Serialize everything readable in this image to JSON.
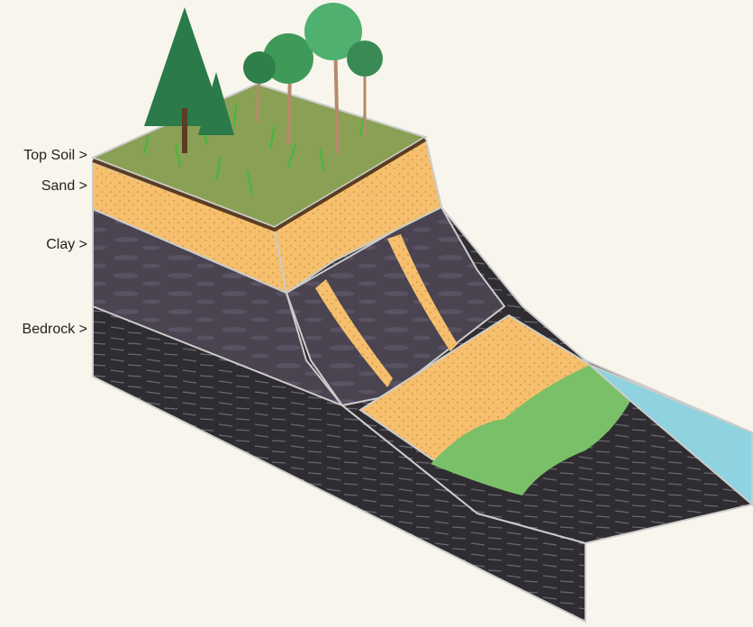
{
  "labels": [
    "Top Soil >",
    "Sand >",
    "Clay >",
    "Bedrock >"
  ]
}
